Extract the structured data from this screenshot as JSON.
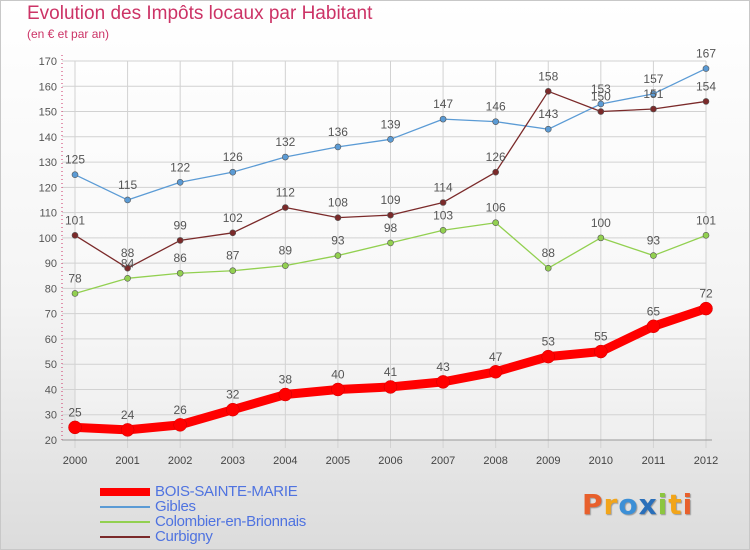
{
  "title": "Evolution des Impôts locaux par Habitant",
  "subtitle": "(en € et par an)",
  "logo": {
    "letters": [
      "P",
      "r",
      "o",
      "x",
      "i",
      "t",
      "i"
    ],
    "colors": [
      "#e8602c",
      "#f2a51a",
      "#3c8fd6",
      "#2a6fba",
      "#8cc63f",
      "#f2a51a",
      "#e8602c"
    ]
  },
  "chart_data": {
    "type": "line",
    "x": [
      "2000",
      "2001",
      "2002",
      "2003",
      "2004",
      "2005",
      "2006",
      "2007",
      "2008",
      "2009",
      "2010",
      "2011",
      "2012"
    ],
    "ylim": [
      20,
      170
    ],
    "yticks": [
      20,
      30,
      40,
      50,
      60,
      70,
      80,
      90,
      100,
      110,
      120,
      130,
      140,
      150,
      160,
      170
    ],
    "grid": true,
    "legend_position": "bottom-left",
    "series": [
      {
        "name": "BOIS-SAINTE-MARIE",
        "color": "#ff0000",
        "thick": true,
        "values": [
          25,
          24,
          26,
          32,
          38,
          40,
          41,
          43,
          47,
          53,
          55,
          65,
          72
        ]
      },
      {
        "name": "Gibles",
        "color": "#5b9bd5",
        "thick": false,
        "values": [
          125,
          115,
          122,
          126,
          132,
          136,
          139,
          147,
          146,
          143,
          153,
          157,
          167
        ]
      },
      {
        "name": "Colombier-en-Brionnais",
        "color": "#92d050",
        "thick": false,
        "values": [
          78,
          84,
          86,
          87,
          89,
          93,
          98,
          103,
          106,
          88,
          100,
          93,
          101
        ]
      },
      {
        "name": "Curbigny",
        "color": "#7b2a2a",
        "thick": false,
        "values": [
          101,
          88,
          99,
          102,
          112,
          108,
          109,
          114,
          126,
          158,
          150,
          151,
          154
        ]
      }
    ]
  }
}
